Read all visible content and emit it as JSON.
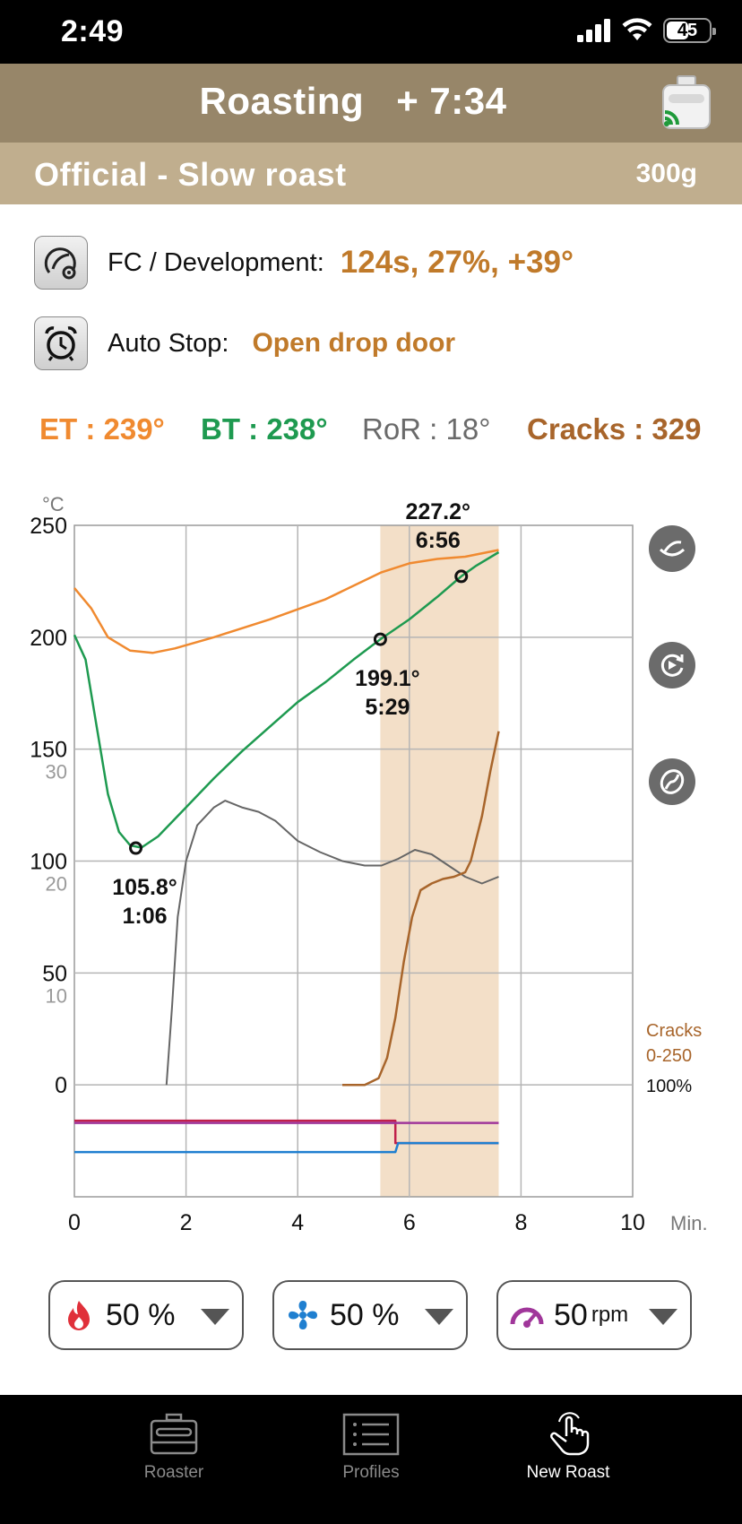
{
  "status": {
    "time": "2:49",
    "battery": "45"
  },
  "header": {
    "title": "Roasting",
    "elapsed": "+ 7:34"
  },
  "profile": {
    "name": "Official - Slow roast",
    "weight": "300g"
  },
  "fc_development": {
    "label": "FC / Development:",
    "value": "124s, 27%, +39°"
  },
  "auto_stop": {
    "label": "Auto Stop:",
    "value": "Open drop door"
  },
  "readings": {
    "et": "ET : 239°",
    "bt": "BT : 238°",
    "ror": "RoR : 18°",
    "cracks": "Cracks : 329"
  },
  "colors": {
    "et": "#f08a30",
    "bt": "#1e9a50",
    "ror": "#666666",
    "cracks": "#a8652b",
    "development": "#f3dfc8",
    "power": "#c0204a",
    "fan": "#1f7fd0",
    "drum": "#a0369a",
    "header": "#978669",
    "profile_bar": "#c0ae8e"
  },
  "chart_data": {
    "type": "line",
    "x_unit_label": "Min.",
    "y_unit_label": "°C",
    "xlim": [
      0,
      10
    ],
    "ylim": [
      -50,
      250
    ],
    "x_ticks": [
      "0",
      "2",
      "4",
      "6",
      "8",
      "10"
    ],
    "y_ticks": [
      "250",
      "200",
      "150",
      "100",
      "50",
      "0"
    ],
    "ror_ticks": [
      "30",
      "20",
      "10"
    ],
    "cracks_scale_label": "Cracks",
    "cracks_scale_range": "0-250",
    "percent_label": "100%",
    "development_window": [
      5.48,
      7.6
    ],
    "series": [
      {
        "key": "et",
        "x": [
          0,
          0.3,
          0.6,
          1.0,
          1.4,
          1.8,
          2.5,
          3.5,
          4.5,
          5.5,
          6.0,
          6.5,
          7.0,
          7.6
        ],
        "y": [
          222,
          213,
          200,
          194,
          193,
          195,
          200,
          208,
          217,
          229,
          233,
          235,
          236,
          239
        ]
      },
      {
        "key": "bt",
        "x": [
          0,
          0.2,
          0.4,
          0.6,
          0.8,
          1.0,
          1.2,
          1.5,
          2.0,
          2.5,
          3.0,
          3.5,
          4.0,
          4.5,
          5.0,
          5.48,
          6.0,
          6.5,
          6.93,
          7.2,
          7.6
        ],
        "y": [
          201,
          190,
          160,
          130,
          113,
          107,
          106,
          111,
          124,
          137,
          149,
          160,
          171,
          180,
          190,
          199.1,
          208,
          218,
          227.2,
          232,
          238
        ]
      },
      {
        "key": "ror",
        "x": [
          1.65,
          1.75,
          1.85,
          2.0,
          2.2,
          2.5,
          2.7,
          3.0,
          3.3,
          3.6,
          4.0,
          4.4,
          4.8,
          5.2,
          5.5,
          5.8,
          6.1,
          6.4,
          6.7,
          7.0,
          7.3,
          7.6
        ],
        "y": [
          0,
          35,
          75,
          100,
          116,
          124,
          127,
          124,
          122,
          118,
          109,
          104,
          100,
          98,
          98,
          101,
          105,
          103,
          98,
          93,
          90,
          93
        ]
      },
      {
        "key": "cracks",
        "x": [
          4.8,
          5.2,
          5.45,
          5.6,
          5.75,
          5.9,
          6.05,
          6.2,
          6.4,
          6.6,
          6.8,
          7.0,
          7.1,
          7.3,
          7.45,
          7.6
        ],
        "y": [
          0,
          0,
          3,
          12,
          30,
          55,
          75,
          87,
          90,
          92,
          93,
          95,
          100,
          120,
          140,
          158
        ]
      },
      {
        "key": "power",
        "x": [
          0,
          5.75,
          5.75,
          7.6
        ],
        "y": [
          -16,
          -16,
          -26,
          -26
        ]
      },
      {
        "key": "drum",
        "x": [
          0,
          7.6
        ],
        "y": [
          -17,
          -17
        ]
      },
      {
        "key": "fan",
        "x": [
          0,
          5.75,
          5.8,
          7.6
        ],
        "y": [
          -30,
          -30,
          -26,
          -26
        ]
      }
    ],
    "markers": [
      {
        "x": 1.1,
        "y": 105.8,
        "temp": "105.8°",
        "time": "1:06"
      },
      {
        "x": 5.48,
        "y": 199.1,
        "temp": "199.1°",
        "time": "5:29"
      },
      {
        "x": 6.93,
        "y": 227.2,
        "temp": "227.2°",
        "time": "6:56"
      }
    ]
  },
  "controls": {
    "heat": {
      "value": "50 %"
    },
    "fan": {
      "value": "50 %"
    },
    "drum": {
      "value": "50",
      "unit": "rpm"
    }
  },
  "tabs": [
    {
      "label": "Roaster"
    },
    {
      "label": "Profiles"
    },
    {
      "label": "New Roast"
    }
  ]
}
